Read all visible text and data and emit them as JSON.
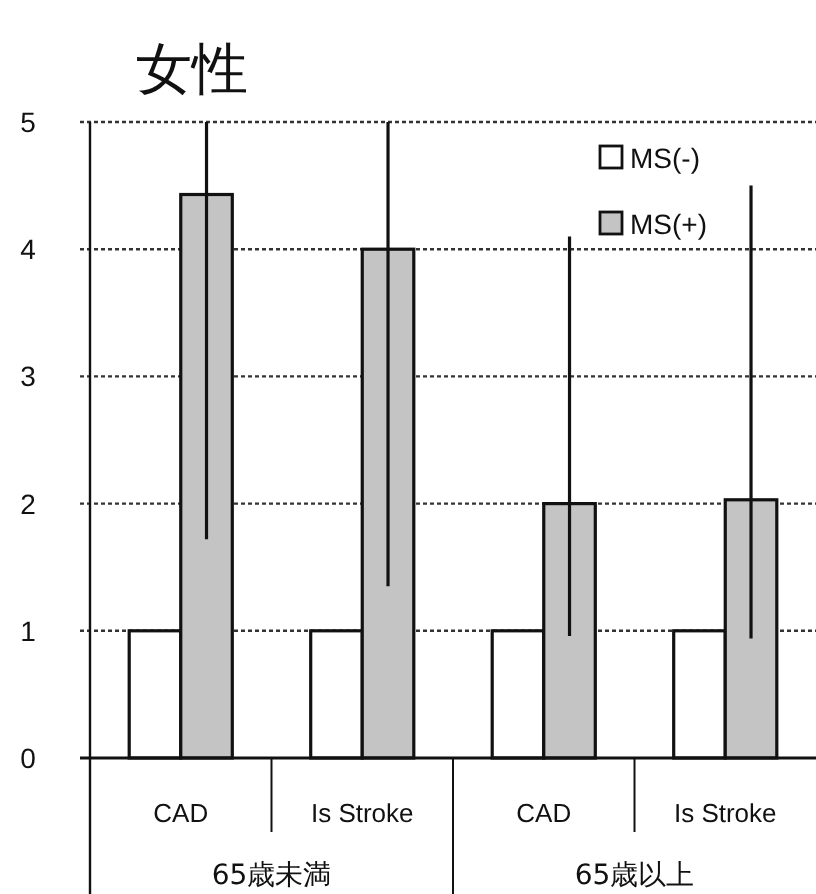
{
  "chart_data": {
    "type": "bar",
    "title": "女性",
    "categories": [
      "CAD",
      "Is Stroke",
      "CAD",
      "Is Stroke"
    ],
    "series": [
      {
        "name": "MS(-)",
        "color": "#ffffff",
        "values": [
          1,
          1,
          1,
          1
        ]
      },
      {
        "name": "MS(+)",
        "color": "#c4c4c4",
        "values": [
          4.43,
          4.0,
          2.0,
          2.03
        ],
        "errors": [
          [
            1.72,
            5
          ],
          [
            1.35,
            5
          ],
          [
            0.96,
            4.1
          ],
          [
            0.94,
            4.5
          ]
        ]
      }
    ],
    "ylim": [
      0,
      5
    ],
    "yticks": [
      0,
      1,
      2,
      3,
      4,
      5
    ],
    "grid": "y",
    "legend": "top right",
    "annotations": [
      "65歳未満",
      "65歳以上"
    ]
  }
}
